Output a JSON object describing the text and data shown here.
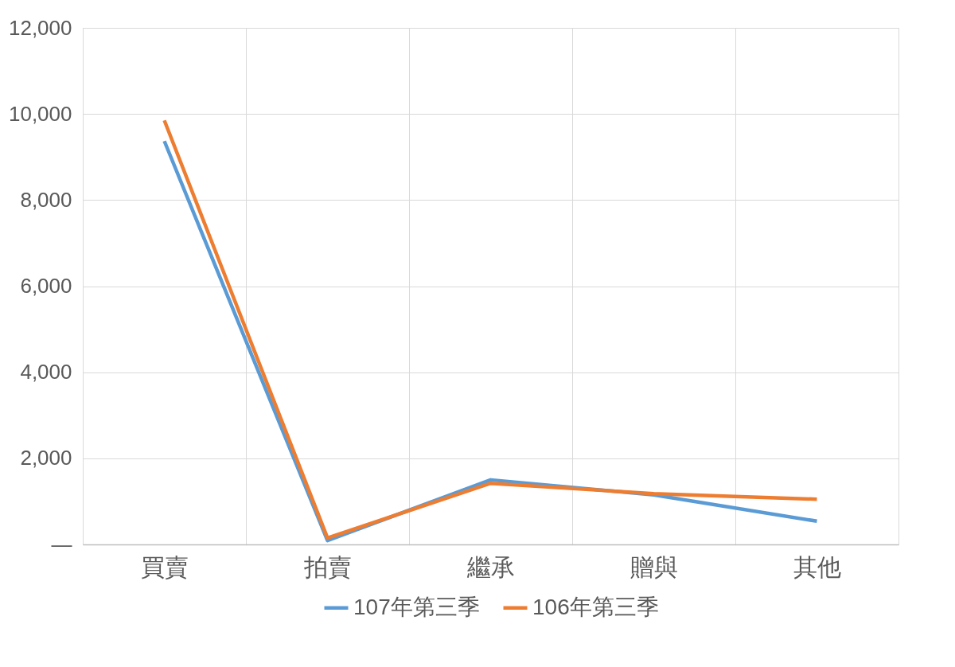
{
  "chart_data": {
    "type": "line",
    "categories": [
      "買賣",
      "拍賣",
      "繼承",
      "贈與",
      "其他"
    ],
    "series": [
      {
        "name": "107年第三季",
        "color": "#5b9bd5",
        "values": [
          9370,
          90,
          1500,
          1150,
          540
        ]
      },
      {
        "name": "106年第三季",
        "color": "#ed7d31",
        "values": [
          9850,
          150,
          1420,
          1180,
          1050
        ]
      }
    ],
    "ylim": [
      0,
      12000
    ],
    "yticks": [
      {
        "value": 0,
        "label": "—"
      },
      {
        "value": 2000,
        "label": "2,000"
      },
      {
        "value": 4000,
        "label": "4,000"
      },
      {
        "value": 6000,
        "label": "6,000"
      },
      {
        "value": 8000,
        "label": "8,000"
      },
      {
        "value": 10000,
        "label": "10,000"
      },
      {
        "value": 12000,
        "label": "12,000"
      }
    ],
    "grid": true,
    "legend": "bottom",
    "marker": "none",
    "line_style": "solid"
  }
}
